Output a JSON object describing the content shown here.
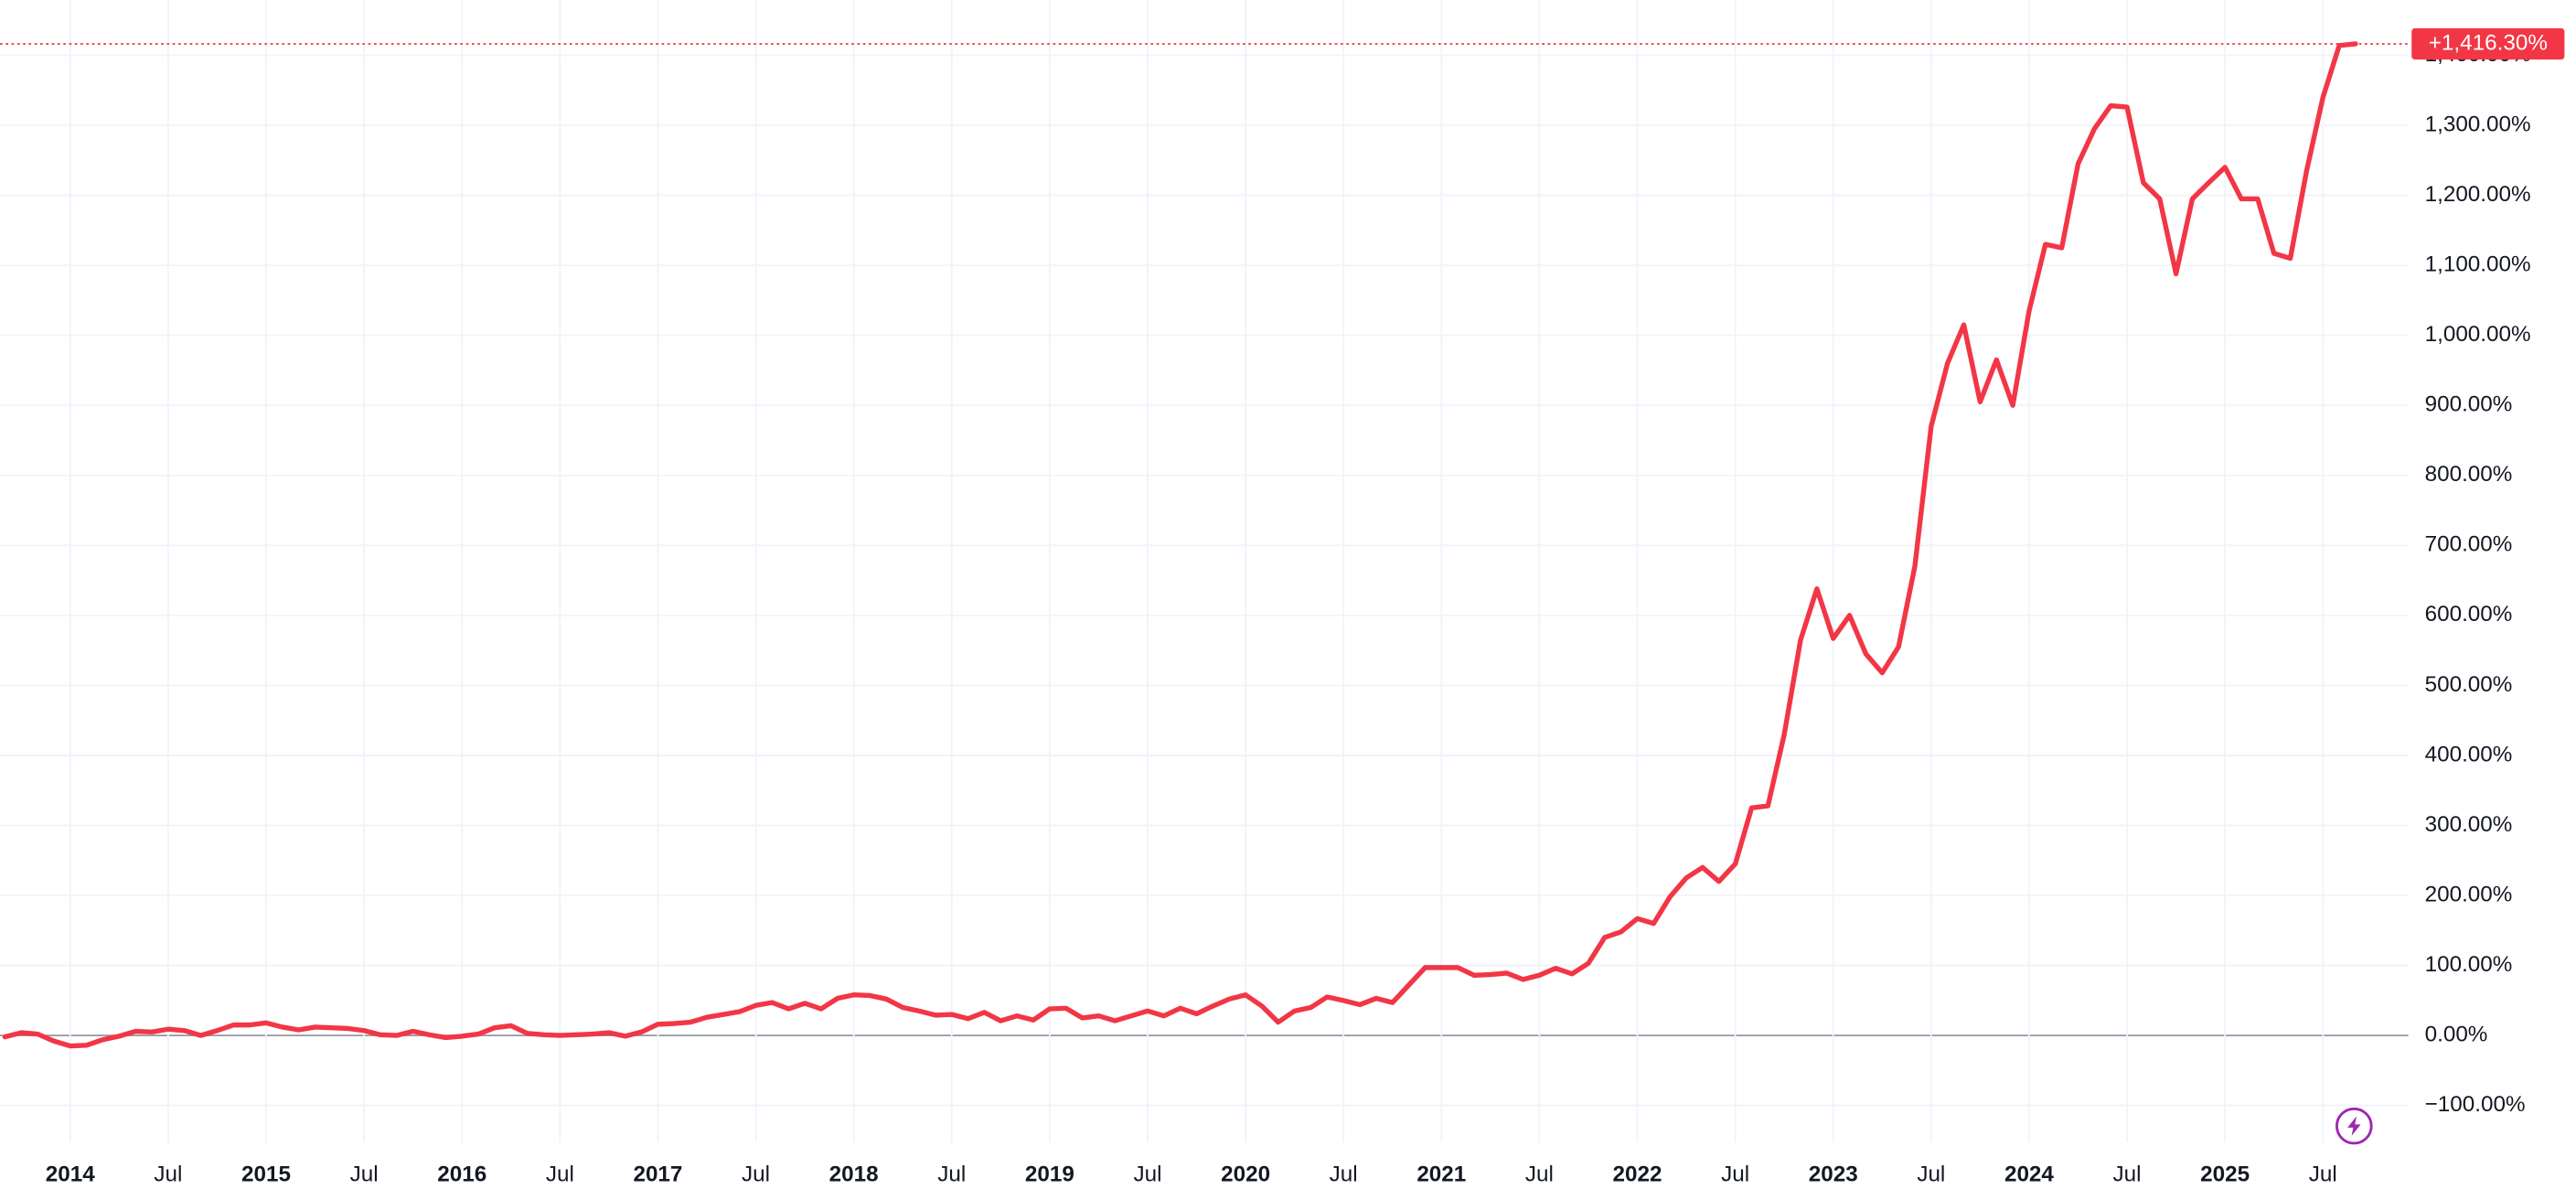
{
  "chart_data": {
    "type": "line",
    "categories": [
      null,
      null,
      null,
      null,
      "2014",
      null,
      null,
      null,
      null,
      null,
      "Jul",
      null,
      null,
      null,
      null,
      null,
      "2015",
      null,
      null,
      null,
      null,
      null,
      "Jul",
      null,
      null,
      null,
      null,
      null,
      "2016",
      null,
      null,
      null,
      null,
      null,
      "Jul",
      null,
      null,
      null,
      null,
      null,
      "2017",
      null,
      null,
      null,
      null,
      null,
      "Jul",
      null,
      null,
      null,
      null,
      null,
      "2018",
      null,
      null,
      null,
      null,
      null,
      "Jul",
      null,
      null,
      null,
      null,
      null,
      "2019",
      null,
      null,
      null,
      null,
      null,
      "Jul",
      null,
      null,
      null,
      null,
      null,
      "2020",
      null,
      null,
      null,
      null,
      null,
      "Jul",
      null,
      null,
      null,
      null,
      null,
      "2021",
      null,
      null,
      null,
      null,
      null,
      "Jul",
      null,
      null,
      null,
      null,
      null,
      "2022",
      null,
      null,
      null,
      null,
      null,
      "Jul",
      null,
      null,
      null,
      null,
      null,
      "2023",
      null,
      null,
      null,
      null,
      null,
      "Jul",
      null,
      null,
      null,
      null,
      null,
      "2024",
      null,
      null,
      null,
      null,
      null,
      "Jul",
      null,
      null,
      null,
      null,
      null,
      "2025",
      null,
      null,
      null,
      null,
      null,
      "Jul",
      null,
      null
    ],
    "series": [
      {
        "color": "#f23645",
        "values": [
          -2,
          4,
          2,
          -8,
          -15,
          -14,
          -6,
          -1,
          6,
          5,
          9,
          7,
          0,
          7,
          15,
          15,
          18,
          12,
          8,
          12,
          11,
          10,
          7,
          1,
          0,
          6,
          1,
          -3,
          -1,
          2,
          11,
          14,
          3,
          1,
          0,
          1,
          2,
          4,
          -1,
          5,
          16,
          17,
          19,
          26,
          30,
          34,
          43,
          47,
          38,
          46,
          38,
          53,
          58,
          57,
          52,
          40,
          35,
          29,
          30,
          24,
          33,
          21,
          28,
          22,
          38,
          39,
          25,
          28,
          21,
          28,
          35,
          28,
          39,
          31,
          42,
          52,
          58,
          42,
          19,
          35,
          40,
          55,
          50,
          44,
          53,
          47,
          72,
          97,
          97,
          97,
          86,
          87,
          89,
          80,
          86,
          96,
          88,
          103,
          140,
          148,
          167,
          160,
          198,
          225,
          240,
          220,
          245,
          325,
          328,
          430,
          565,
          638,
          567,
          600,
          545,
          518,
          555,
          670,
          870,
          960,
          1015,
          905,
          965,
          900,
          1035,
          1130,
          1125,
          1245,
          1295,
          1328,
          1326,
          1218,
          1195,
          1088,
          1195,
          1218,
          1240,
          1195,
          1195,
          1117,
          1110,
          1235,
          1340,
          1414,
          1416.3
        ],
        "value_labels": [
          null,
          null,
          null,
          null,
          null,
          null,
          null,
          null,
          null,
          null,
          null,
          null,
          null,
          null,
          null,
          null,
          null,
          null,
          null,
          null,
          null,
          null,
          null,
          null,
          null,
          null,
          null,
          null,
          null,
          null,
          null,
          null,
          null,
          null,
          null,
          null,
          null,
          null,
          null,
          null,
          null,
          null,
          null,
          null,
          null,
          null,
          null,
          null,
          null,
          null,
          null,
          null,
          null,
          null,
          null,
          null,
          null,
          null,
          null,
          null,
          null,
          null,
          null,
          null,
          null,
          null,
          null,
          null,
          null,
          null,
          null,
          null,
          null,
          null,
          null,
          null,
          null,
          null,
          null,
          null,
          null,
          null,
          null,
          null,
          null,
          null,
          null,
          null,
          null,
          null,
          null,
          null,
          null,
          null,
          null,
          null,
          null,
          null,
          null,
          null,
          null,
          null,
          null,
          null,
          null,
          null,
          null,
          null,
          null,
          null,
          null,
          null,
          null,
          null,
          null,
          null,
          null,
          null,
          null,
          null,
          null,
          null,
          null,
          null,
          null,
          null,
          null,
          null,
          null,
          null,
          null,
          null,
          null,
          null,
          null,
          null,
          null,
          null,
          null,
          null,
          null,
          null,
          null,
          null,
          "+1,416.30%"
        ]
      }
    ],
    "ylim": [
      -235,
      1479
    ],
    "yticks": [
      {
        "value": -100,
        "label": "−100.00%"
      },
      {
        "value": 0,
        "label": "0.00%"
      },
      {
        "value": 100,
        "label": "100.00%"
      },
      {
        "value": 200,
        "label": "200.00%"
      },
      {
        "value": 300,
        "label": "300.00%"
      },
      {
        "value": 400,
        "label": "400.00%"
      },
      {
        "value": 500,
        "label": "500.00%"
      },
      {
        "value": 600,
        "label": "600.00%"
      },
      {
        "value": 700,
        "label": "700.00%"
      },
      {
        "value": 800,
        "label": "800.00%"
      },
      {
        "value": 900,
        "label": "900.00%"
      },
      {
        "value": 1000,
        "label": "1,000.00%"
      },
      {
        "value": 1100,
        "label": "1,100.00%"
      },
      {
        "value": 1200,
        "label": "1,200.00%"
      },
      {
        "value": 1300,
        "label": "1,300.00%"
      },
      {
        "value": 1400,
        "label": "1,400.00%"
      }
    ],
    "grid": true,
    "log_scale": false
  }
}
